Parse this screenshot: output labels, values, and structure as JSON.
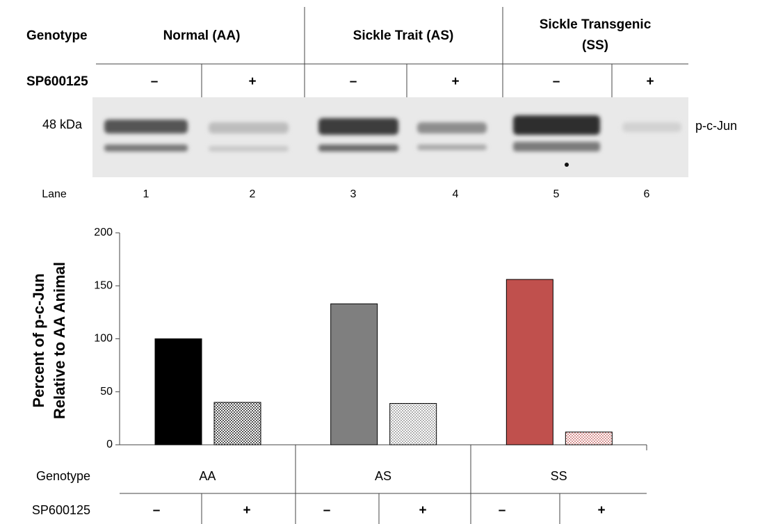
{
  "blot": {
    "genotype_label": "Genotype",
    "genotypes": [
      "Normal (AA)",
      "Sickle Trait (AS)",
      [
        "Sickle Transgenic",
        "(SS)"
      ]
    ],
    "treatment_label": "SP600125",
    "treatments": [
      "–",
      "+",
      "–",
      "+",
      "–",
      "+"
    ],
    "size_label": "48 kDa",
    "protein_label": "p-c-Jun",
    "lane_label": "Lane",
    "lanes": [
      "1",
      "2",
      "3",
      "4",
      "5",
      "6"
    ]
  },
  "chart_data": {
    "type": "bar",
    "ylabel": [
      "Percent of p-c-Jun",
      "Relative to AA Animal"
    ],
    "values": [
      100,
      40,
      133,
      39,
      156,
      12
    ],
    "colors": [
      "#000000",
      "#555555",
      "#7f7f7f",
      "#b0b0b0",
      "#c0504d",
      "#d99694"
    ],
    "patterned": [
      false,
      true,
      false,
      true,
      false,
      true
    ],
    "ylim": [
      0,
      200
    ],
    "yticks": [
      0,
      50,
      100,
      150,
      200
    ],
    "x_table": {
      "genotype_label": "Genotype",
      "genotypes": [
        "AA",
        "AS",
        "SS"
      ],
      "treatment_label": "SP600125",
      "treatments": [
        "–",
        "+",
        "–",
        "+",
        "–",
        "+"
      ]
    }
  }
}
